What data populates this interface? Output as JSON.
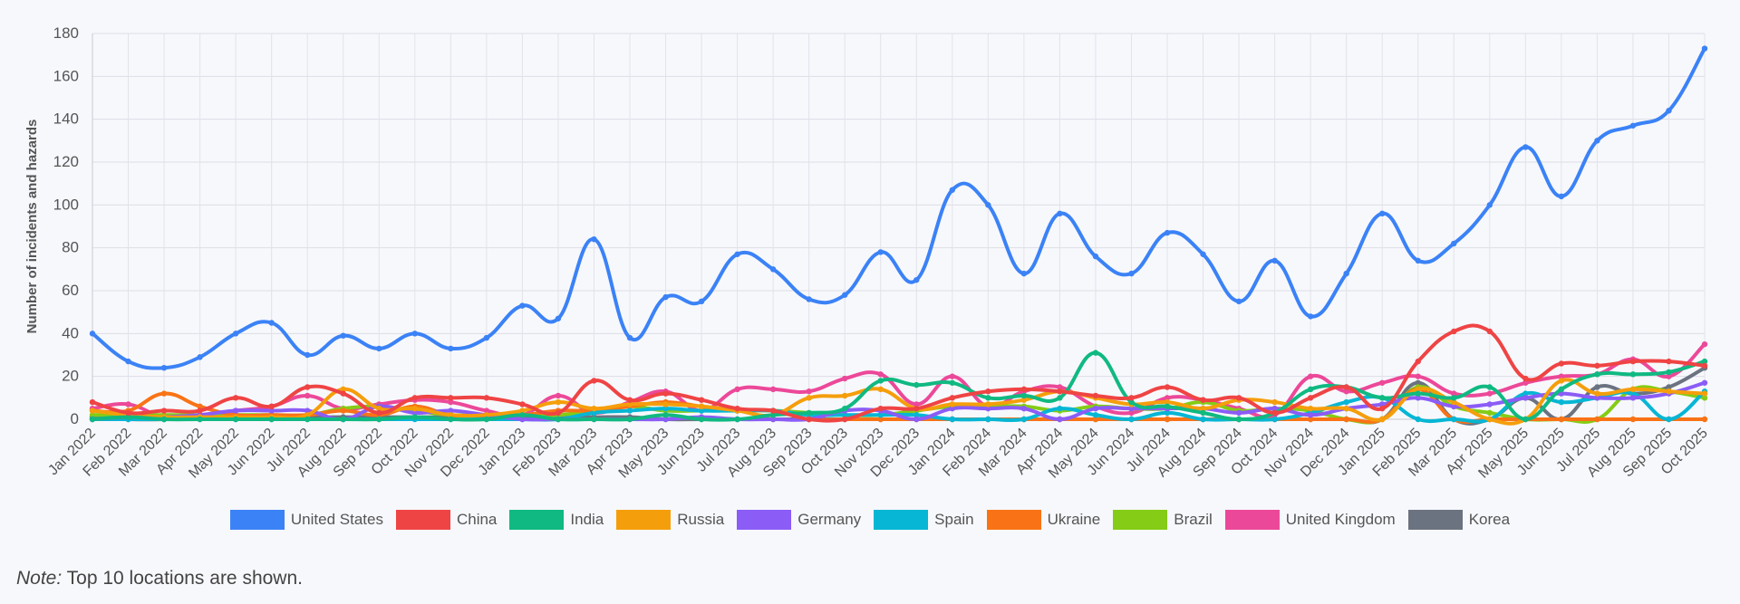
{
  "chart_data": {
    "type": "line",
    "ylabel": "Number of incidents and hazards",
    "xlabel": "",
    "ylim": [
      0,
      180
    ],
    "yticks": [
      0,
      20,
      40,
      60,
      80,
      100,
      120,
      140,
      160,
      180
    ],
    "grid": true,
    "legend_position": "bottom",
    "categories": [
      "Jan 2022",
      "Feb 2022",
      "Mar 2022",
      "Apr 2022",
      "May 2022",
      "Jun 2022",
      "Jul 2022",
      "Aug 2022",
      "Sep 2022",
      "Oct 2022",
      "Nov 2022",
      "Dec 2022",
      "Jan 2023",
      "Feb 2023",
      "Mar 2023",
      "Apr 2023",
      "May 2023",
      "Jun 2023",
      "Jul 2023",
      "Aug 2023",
      "Sep 2023",
      "Oct 2023",
      "Nov 2023",
      "Dec 2023",
      "Jan 2024",
      "Feb 2024",
      "Mar 2024",
      "Apr 2024",
      "May 2024",
      "Jun 2024",
      "Jul 2024",
      "Aug 2024",
      "Sep 2024",
      "Oct 2024",
      "Nov 2024",
      "Dec 2024",
      "Jan 2025",
      "Feb 2025",
      "Mar 2025",
      "Apr 2025",
      "May 2025",
      "Jun 2025",
      "Jul 2025",
      "Aug 2025",
      "Sep 2025",
      "Oct 2025"
    ],
    "series": [
      {
        "name": "United States",
        "color": "#3b82f6",
        "values": [
          40,
          27,
          24,
          29,
          40,
          45,
          30,
          39,
          33,
          40,
          33,
          38,
          53,
          47,
          84,
          38,
          57,
          55,
          77,
          70,
          56,
          58,
          78,
          65,
          107,
          100,
          68,
          96,
          76,
          68,
          87,
          77,
          55,
          74,
          48,
          68,
          96,
          74,
          82,
          100,
          127,
          104,
          130,
          137,
          144,
          173
        ]
      },
      {
        "name": "China",
        "color": "#ef4444",
        "values": [
          8,
          3,
          4,
          4,
          10,
          6,
          15,
          12,
          3,
          10,
          10,
          10,
          7,
          3,
          18,
          9,
          12,
          9,
          5,
          4,
          0,
          0,
          5,
          5,
          10,
          13,
          14,
          13,
          11,
          10,
          15,
          9,
          10,
          3,
          10,
          15,
          5,
          27,
          41,
          41,
          19,
          26,
          25,
          27,
          27,
          25
        ]
      },
      {
        "name": "India",
        "color": "#10b981",
        "values": [
          0,
          1,
          0,
          0,
          0,
          0,
          0,
          0,
          0,
          1,
          0,
          0,
          2,
          0,
          0,
          0,
          2,
          0,
          0,
          2,
          3,
          5,
          18,
          16,
          17,
          10,
          11,
          10,
          31,
          8,
          6,
          3,
          0,
          3,
          14,
          15,
          10,
          12,
          10,
          15,
          0,
          14,
          21,
          21,
          22,
          27
        ]
      },
      {
        "name": "Russia",
        "color": "#f59e0b",
        "values": [
          4,
          2,
          1,
          1,
          1,
          1,
          2,
          14,
          5,
          5,
          2,
          2,
          4,
          8,
          5,
          7,
          7,
          6,
          4,
          2,
          10,
          11,
          14,
          5,
          7,
          7,
          9,
          13,
          10,
          7,
          8,
          5,
          9,
          8,
          5,
          5,
          0,
          14,
          8,
          0,
          0,
          18,
          12,
          14,
          13,
          12
        ]
      },
      {
        "name": "Germany",
        "color": "#8b5cf6",
        "values": [
          0,
          1,
          1,
          2,
          4,
          4,
          4,
          0,
          6,
          3,
          4,
          2,
          0,
          0,
          0,
          0,
          0,
          1,
          0,
          0,
          0,
          4,
          4,
          0,
          5,
          5,
          5,
          0,
          5,
          5,
          5,
          5,
          3,
          5,
          2,
          5,
          7,
          10,
          6,
          7,
          10,
          12,
          10,
          10,
          12,
          17
        ]
      },
      {
        "name": "Spain",
        "color": "#06b6d4",
        "values": [
          0,
          0,
          0,
          0,
          0,
          0,
          0,
          0,
          0,
          0,
          0,
          0,
          0,
          0,
          3,
          4,
          5,
          4,
          4,
          4,
          2,
          2,
          2,
          2,
          0,
          0,
          0,
          5,
          2,
          0,
          3,
          0,
          0,
          0,
          3,
          8,
          10,
          0,
          0,
          0,
          12,
          8,
          10,
          12,
          0,
          13
        ]
      },
      {
        "name": "Ukraine",
        "color": "#f97316",
        "values": [
          4,
          4,
          12,
          6,
          2,
          2,
          2,
          4,
          2,
          6,
          2,
          2,
          2,
          4,
          4,
          6,
          8,
          6,
          4,
          4,
          0,
          0,
          0,
          0,
          0,
          0,
          0,
          0,
          0,
          0,
          0,
          0,
          0,
          0,
          0,
          0,
          0,
          14,
          0,
          0,
          0,
          0,
          0,
          0,
          0,
          0
        ]
      },
      {
        "name": "Brazil",
        "color": "#84cc16",
        "values": [
          2,
          2,
          2,
          2,
          2,
          2,
          2,
          5,
          6,
          4,
          2,
          2,
          2,
          2,
          4,
          6,
          4,
          4,
          4,
          4,
          3,
          2,
          2,
          4,
          6,
          6,
          6,
          4,
          6,
          5,
          5,
          8,
          4,
          5,
          4,
          0,
          0,
          15,
          6,
          3,
          0,
          0,
          0,
          14,
          13,
          10
        ]
      },
      {
        "name": "United Kingdom",
        "color": "#ec4899",
        "values": [
          5,
          7,
          1,
          2,
          4,
          6,
          11,
          5,
          7,
          9,
          8,
          4,
          2,
          11,
          3,
          8,
          13,
          4,
          14,
          14,
          13,
          19,
          21,
          7,
          20,
          6,
          13,
          15,
          6,
          3,
          10,
          9,
          5,
          2,
          20,
          13,
          17,
          20,
          12,
          12,
          17,
          20,
          21,
          28,
          20,
          35
        ]
      },
      {
        "name": "Korea",
        "color": "#6b7280",
        "values": [
          1,
          0,
          0,
          1,
          1,
          1,
          1,
          1,
          1,
          1,
          1,
          1,
          1,
          1,
          1,
          1,
          0,
          0,
          0,
          0,
          0,
          0,
          0,
          0,
          0,
          0,
          0,
          0,
          0,
          0,
          0,
          0,
          0,
          0,
          0,
          0,
          0,
          17,
          0,
          0,
          10,
          0,
          15,
          12,
          15,
          24
        ]
      }
    ]
  },
  "note": {
    "label": "Note:",
    "text": " Top 10 locations are shown."
  }
}
